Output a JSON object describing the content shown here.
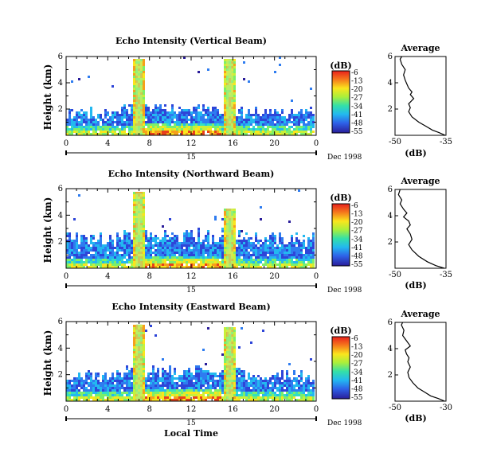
{
  "chart_data": [
    {
      "type": "heatmap",
      "title": "Echo Intensity (Vertical Beam)",
      "ylabel": "Height (km)",
      "xlim": [
        0,
        24
      ],
      "ylim": [
        0,
        6
      ],
      "x_ticks": [
        "0",
        "4",
        "8",
        "12",
        "16",
        "20",
        "0"
      ],
      "y_ticks": [
        "2",
        "4",
        "6"
      ],
      "date_labels": [
        "15",
        "Dec 1998"
      ],
      "colorbar": {
        "label": "(dB)",
        "ticks": [
          "-6",
          "-13",
          "-20",
          "-27",
          "-34",
          "-41",
          "-48",
          "-55"
        ]
      },
      "layer_top_km": 1.7,
      "spikes": [
        {
          "hour": 7.0,
          "top_km": 5.8
        },
        {
          "hour": 15.7,
          "top_km": 5.8
        }
      ],
      "average": {
        "title": "Average",
        "xlabel": "(dB)",
        "xlim": [
          -50,
          -35
        ],
        "x_ticks": [
          "-50",
          "-35"
        ],
        "ylim": [
          0,
          6
        ],
        "y_ticks": [
          "2",
          "4",
          "6"
        ],
        "profile": [
          [
            -35.2,
            0.0
          ],
          [
            -37,
            0.2
          ],
          [
            -39,
            0.4
          ],
          [
            -41,
            0.7
          ],
          [
            -43,
            1.0
          ],
          [
            -45,
            1.4
          ],
          [
            -46,
            1.8
          ],
          [
            -45.5,
            2.1
          ],
          [
            -46,
            2.4
          ],
          [
            -44.5,
            2.8
          ],
          [
            -45.5,
            3.1
          ],
          [
            -45,
            3.3
          ],
          [
            -46,
            3.6
          ],
          [
            -46.5,
            3.9
          ],
          [
            -47,
            4.2
          ],
          [
            -47.5,
            4.6
          ],
          [
            -47,
            5.0
          ],
          [
            -48,
            5.4
          ],
          [
            -48.5,
            5.8
          ],
          [
            -48,
            6.0
          ]
        ]
      }
    },
    {
      "type": "heatmap",
      "title": "Echo Intensity (Northward Beam)",
      "ylabel": "Height (km)",
      "xlim": [
        0,
        24
      ],
      "ylim": [
        0,
        6
      ],
      "x_ticks": [
        "0",
        "4",
        "8",
        "12",
        "16",
        "20",
        "0"
      ],
      "y_ticks": [
        "2",
        "4",
        "6"
      ],
      "date_labels": [
        "15",
        "Dec 1998"
      ],
      "colorbar": {
        "label": "(dB)",
        "ticks": [
          "-6",
          "-13",
          "-20",
          "-27",
          "-34",
          "-41",
          "-48",
          "-55"
        ]
      },
      "layer_top_km": 2.2,
      "spikes": [
        {
          "hour": 7.0,
          "top_km": 5.7
        },
        {
          "hour": 15.7,
          "top_km": 4.5
        }
      ],
      "average": {
        "title": "Average",
        "xlabel": "(dB)",
        "xlim": [
          -50,
          -35
        ],
        "x_ticks": [
          "-50",
          "-35"
        ],
        "ylim": [
          0,
          6
        ],
        "y_ticks": [
          "2",
          "4",
          "6"
        ],
        "profile": [
          [
            -35.5,
            0.0
          ],
          [
            -38,
            0.2
          ],
          [
            -40.5,
            0.5
          ],
          [
            -43,
            0.9
          ],
          [
            -45,
            1.4
          ],
          [
            -46,
            1.8
          ],
          [
            -45,
            2.2
          ],
          [
            -45.5,
            2.6
          ],
          [
            -46.5,
            3.0
          ],
          [
            -45.5,
            3.3
          ],
          [
            -46,
            3.6
          ],
          [
            -47.5,
            3.9
          ],
          [
            -46.5,
            4.2
          ],
          [
            -47.5,
            4.5
          ],
          [
            -48.5,
            4.9
          ],
          [
            -48,
            5.2
          ],
          [
            -49,
            5.6
          ],
          [
            -48.5,
            6.0
          ]
        ]
      }
    },
    {
      "type": "heatmap",
      "title": "Echo Intensity (Eastward Beam)",
      "ylabel": "Height (km)",
      "xlabel": "Local Time",
      "xlim": [
        0,
        24
      ],
      "ylim": [
        0,
        6
      ],
      "x_ticks": [
        "0",
        "4",
        "8",
        "12",
        "16",
        "20",
        "0"
      ],
      "y_ticks": [
        "2",
        "4",
        "6"
      ],
      "date_labels": [
        "15",
        "Dec 1998"
      ],
      "colorbar": {
        "label": "(dB)",
        "ticks": [
          "-6",
          "-13",
          "-20",
          "-27",
          "-34",
          "-41",
          "-48",
          "-55"
        ]
      },
      "layer_top_km": 2.0,
      "spikes": [
        {
          "hour": 7.0,
          "top_km": 5.8
        },
        {
          "hour": 15.7,
          "top_km": 5.6
        }
      ],
      "average": {
        "title": "Average",
        "xlabel": "(dB)",
        "xlim": [
          -50,
          -30
        ],
        "x_ticks": [
          "-50",
          "-30"
        ],
        "ylim": [
          0,
          6
        ],
        "y_ticks": [
          "2",
          "4",
          "6"
        ],
        "profile": [
          [
            -30.5,
            0.0
          ],
          [
            -33,
            0.2
          ],
          [
            -36,
            0.4
          ],
          [
            -38.5,
            0.7
          ],
          [
            -41,
            1.0
          ],
          [
            -43,
            1.4
          ],
          [
            -44.5,
            1.8
          ],
          [
            -45,
            2.2
          ],
          [
            -44,
            2.6
          ],
          [
            -45,
            3.0
          ],
          [
            -44.5,
            3.3
          ],
          [
            -45.5,
            3.6
          ],
          [
            -46,
            3.9
          ],
          [
            -44,
            4.2
          ],
          [
            -45.5,
            4.6
          ],
          [
            -47,
            5.0
          ],
          [
            -46.5,
            5.4
          ],
          [
            -47.5,
            5.8
          ],
          [
            -47,
            6.0
          ]
        ]
      }
    }
  ]
}
